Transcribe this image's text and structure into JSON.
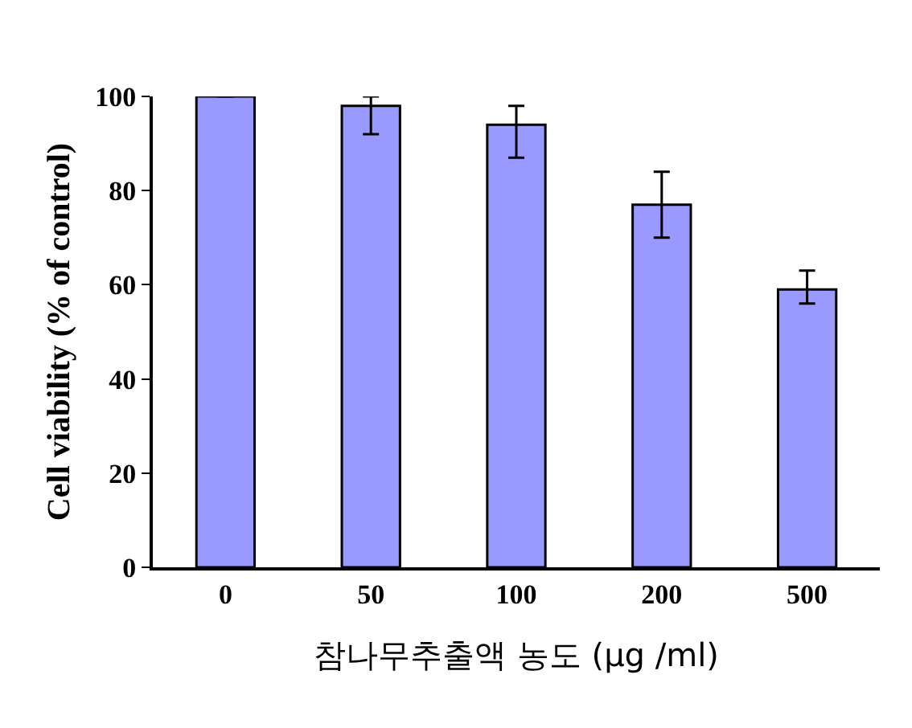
{
  "chart_data": {
    "type": "bar",
    "xlabel": "참나무추출액 농도 (μg /ml)",
    "ylabel": "Cell viability (% of control)",
    "categories": [
      "0",
      "50",
      "100",
      "200",
      "500"
    ],
    "values": [
      100,
      98,
      94,
      77,
      59
    ],
    "errors": [
      null,
      [
        92,
        100
      ],
      [
        87,
        98
      ],
      [
        70,
        84
      ],
      [
        56,
        63
      ]
    ],
    "color": "#9999ff",
    "ylim": [
      0,
      100
    ],
    "yticks": [
      0,
      20,
      40,
      60,
      80,
      100
    ]
  }
}
